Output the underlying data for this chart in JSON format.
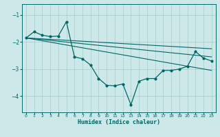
{
  "xlabel": "Humidex (Indice chaleur)",
  "bg_color": "#cce8e8",
  "line_color": "#006666",
  "grid_color": "#aacccc",
  "xlim": [
    -0.5,
    23.5
  ],
  "ylim": [
    -4.6,
    -0.6
  ],
  "yticks": [
    -4,
    -3,
    -2,
    -1
  ],
  "xticks": [
    0,
    1,
    2,
    3,
    4,
    5,
    6,
    7,
    8,
    9,
    10,
    11,
    12,
    13,
    14,
    15,
    16,
    17,
    18,
    19,
    20,
    21,
    22,
    23
  ],
  "curve_x": [
    0,
    1,
    2,
    3,
    4,
    5,
    6,
    7,
    8,
    9,
    10,
    11,
    12,
    13,
    14,
    15,
    16,
    17,
    18,
    19,
    20,
    21,
    22,
    23
  ],
  "curve_y": [
    -1.85,
    -1.62,
    -1.75,
    -1.8,
    -1.78,
    -1.25,
    -2.55,
    -2.62,
    -2.85,
    -3.35,
    -3.6,
    -3.62,
    -3.55,
    -4.32,
    -3.45,
    -3.35,
    -3.35,
    -3.05,
    -3.05,
    -3.0,
    -2.9,
    -2.35,
    -2.6,
    -2.7
  ],
  "line1_x": [
    0,
    23
  ],
  "line1_y": [
    -1.85,
    -2.55
  ],
  "line2_x": [
    0,
    23
  ],
  "line2_y": [
    -1.85,
    -3.05
  ],
  "line3_x": [
    0,
    23
  ],
  "line3_y": [
    -1.85,
    -2.25
  ]
}
